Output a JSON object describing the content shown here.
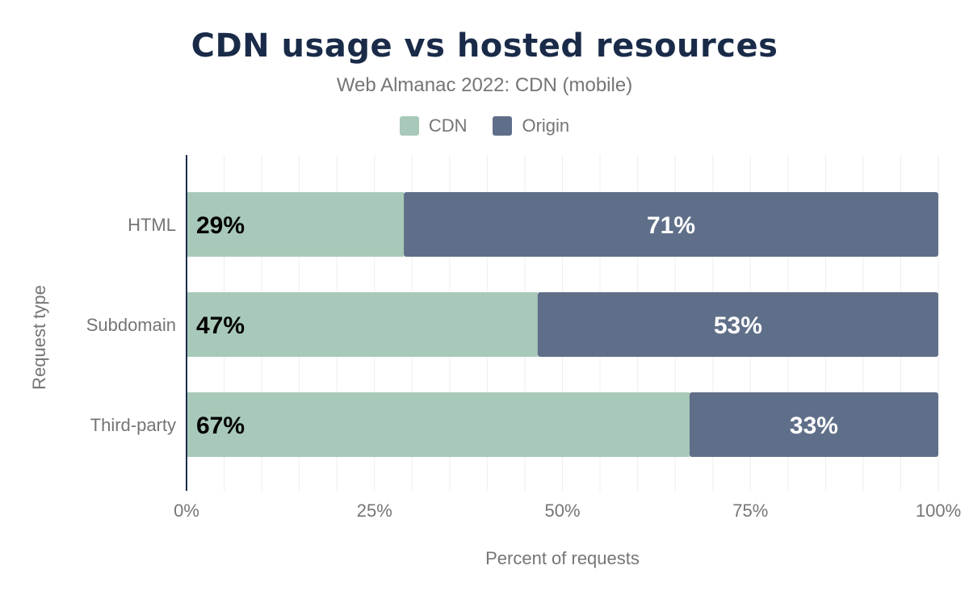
{
  "chart_data": {
    "type": "bar",
    "orientation": "horizontal",
    "stacked": true,
    "title": "CDN usage vs hosted resources",
    "subtitle": "Web Almanac 2022: CDN (mobile)",
    "xlabel": "Percent of requests",
    "ylabel": "Request type",
    "xlim": [
      0,
      100
    ],
    "x_ticks": [
      "0%",
      "25%",
      "50%",
      "75%",
      "100%"
    ],
    "grid": true,
    "legend_position": "top",
    "categories": [
      "HTML",
      "Subdomain",
      "Third-party"
    ],
    "series": [
      {
        "name": "CDN",
        "color": "#a8c9b9",
        "label_color": "#000000",
        "values": [
          28.9,
          46.7,
          66.9
        ],
        "labels": [
          "29%",
          "47%",
          "67%"
        ]
      },
      {
        "name": "Origin",
        "color": "#606f89",
        "label_color": "#ffffff",
        "values": [
          71.1,
          53.3,
          33.1
        ],
        "labels": [
          "71%",
          "53%",
          "33%"
        ]
      }
    ]
  }
}
